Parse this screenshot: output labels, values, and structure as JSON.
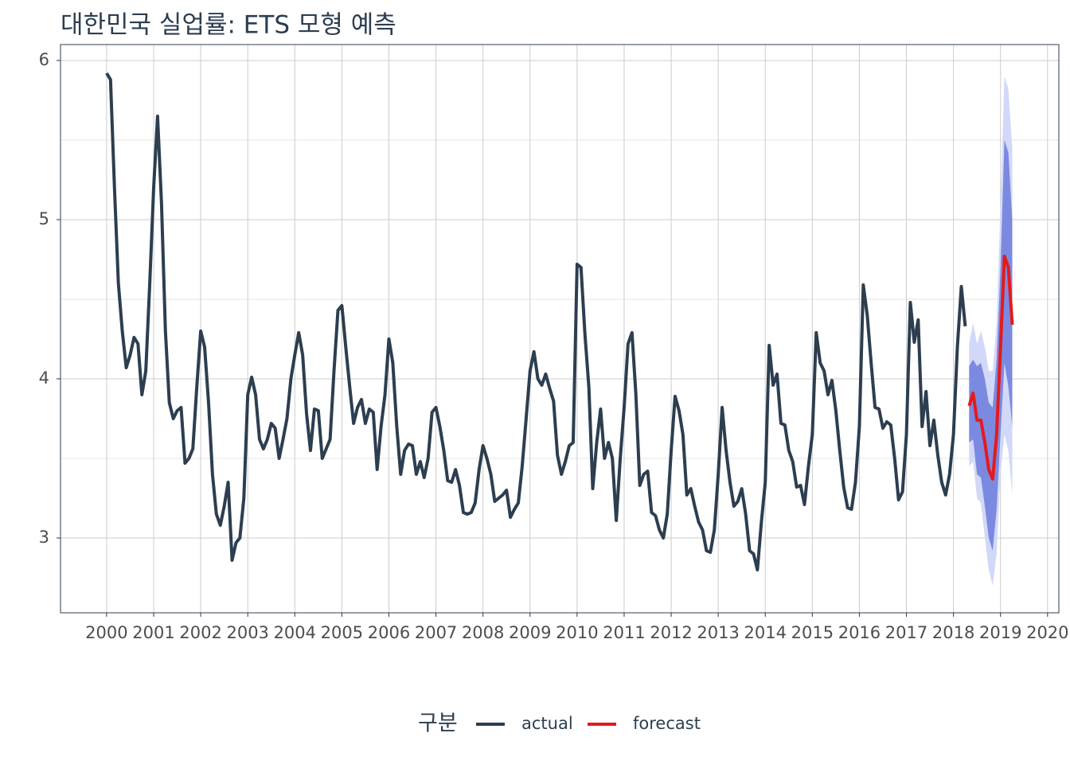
{
  "chart_data": {
    "type": "line",
    "title": "대한민국 실업률: ETS 모형 예측",
    "legend_title": "구분",
    "legend": "bottom",
    "grid": true,
    "xlim": [
      1999.02,
      2020.24
    ],
    "xticks": [
      2000,
      2001,
      2002,
      2003,
      2004,
      2005,
      2006,
      2007,
      2008,
      2009,
      2010,
      2011,
      2012,
      2013,
      2014,
      2015,
      2016,
      2017,
      2018,
      2019,
      2020
    ],
    "ylim": [
      2.53,
      6.1
    ],
    "yticks": [
      3,
      4,
      5,
      6
    ],
    "y_minor_ticks": [
      3.5,
      4.5,
      5.5
    ],
    "series": [
      {
        "name": "actual",
        "color": "#2c3e50",
        "x": [
          2000,
          2000.083,
          2000.167,
          2000.25,
          2000.333,
          2000.417,
          2000.5,
          2000.583,
          2000.667,
          2000.75,
          2000.833,
          2000.917,
          2001,
          2001.083,
          2001.167,
          2001.25,
          2001.333,
          2001.417,
          2001.5,
          2001.583,
          2001.667,
          2001.75,
          2001.833,
          2001.917,
          2002,
          2002.083,
          2002.167,
          2002.25,
          2002.333,
          2002.417,
          2002.5,
          2002.583,
          2002.667,
          2002.75,
          2002.833,
          2002.917,
          2003,
          2003.083,
          2003.167,
          2003.25,
          2003.333,
          2003.417,
          2003.5,
          2003.583,
          2003.667,
          2003.75,
          2003.833,
          2003.917,
          2004,
          2004.083,
          2004.167,
          2004.25,
          2004.333,
          2004.417,
          2004.5,
          2004.583,
          2004.667,
          2004.75,
          2004.833,
          2004.917,
          2005,
          2005.083,
          2005.167,
          2005.25,
          2005.333,
          2005.417,
          2005.5,
          2005.583,
          2005.667,
          2005.75,
          2005.833,
          2005.917,
          2006,
          2006.083,
          2006.167,
          2006.25,
          2006.333,
          2006.417,
          2006.5,
          2006.583,
          2006.667,
          2006.75,
          2006.833,
          2006.917,
          2007,
          2007.083,
          2007.167,
          2007.25,
          2007.333,
          2007.417,
          2007.5,
          2007.583,
          2007.667,
          2007.75,
          2007.833,
          2007.917,
          2008,
          2008.083,
          2008.167,
          2008.25,
          2008.333,
          2008.417,
          2008.5,
          2008.583,
          2008.667,
          2008.75,
          2008.833,
          2008.917,
          2009,
          2009.083,
          2009.167,
          2009.25,
          2009.333,
          2009.417,
          2009.5,
          2009.583,
          2009.667,
          2009.75,
          2009.833,
          2009.917,
          2010,
          2010.083,
          2010.167,
          2010.25,
          2010.333,
          2010.417,
          2010.5,
          2010.583,
          2010.667,
          2010.75,
          2010.833,
          2010.917,
          2011,
          2011.083,
          2011.167,
          2011.25,
          2011.333,
          2011.417,
          2011.5,
          2011.583,
          2011.667,
          2011.75,
          2011.833,
          2011.917,
          2012,
          2012.083,
          2012.167,
          2012.25,
          2012.333,
          2012.417,
          2012.5,
          2012.583,
          2012.667,
          2012.75,
          2012.833,
          2012.917,
          2013,
          2013.083,
          2013.167,
          2013.25,
          2013.333,
          2013.417,
          2013.5,
          2013.583,
          2013.667,
          2013.75,
          2013.833,
          2013.917,
          2014,
          2014.083,
          2014.167,
          2014.25,
          2014.333,
          2014.417,
          2014.5,
          2014.583,
          2014.667,
          2014.75,
          2014.833,
          2014.917,
          2015,
          2015.083,
          2015.167,
          2015.25,
          2015.333,
          2015.417,
          2015.5,
          2015.583,
          2015.667,
          2015.75,
          2015.833,
          2015.917,
          2016,
          2016.083,
          2016.167,
          2016.25,
          2016.333,
          2016.417,
          2016.5,
          2016.583,
          2016.667,
          2016.75,
          2016.833,
          2016.917,
          2017,
          2017.083,
          2017.167,
          2017.25,
          2017.333,
          2017.417,
          2017.5,
          2017.583,
          2017.667,
          2017.75,
          2017.833,
          2017.917,
          2018,
          2018.083,
          2018.167,
          2018.25
        ],
        "values": [
          5.92,
          5.88,
          5.2,
          4.6,
          4.3,
          4.07,
          4.15,
          4.26,
          4.22,
          3.9,
          4.05,
          4.6,
          5.2,
          5.65,
          5.1,
          4.3,
          3.85,
          3.75,
          3.8,
          3.82,
          3.47,
          3.5,
          3.56,
          3.95,
          4.3,
          4.2,
          3.85,
          3.4,
          3.15,
          3.08,
          3.2,
          3.35,
          2.86,
          2.97,
          3.0,
          3.25,
          3.9,
          4.01,
          3.9,
          3.62,
          3.56,
          3.62,
          3.72,
          3.69,
          3.5,
          3.62,
          3.75,
          4.0,
          4.15,
          4.29,
          4.15,
          3.78,
          3.55,
          3.81,
          3.8,
          3.5,
          3.56,
          3.62,
          4.05,
          4.43,
          4.46,
          4.2,
          3.95,
          3.72,
          3.82,
          3.87,
          3.72,
          3.81,
          3.79,
          3.43,
          3.7,
          3.9,
          4.25,
          4.1,
          3.7,
          3.4,
          3.55,
          3.59,
          3.58,
          3.4,
          3.48,
          3.38,
          3.5,
          3.79,
          3.82,
          3.7,
          3.55,
          3.36,
          3.35,
          3.43,
          3.33,
          3.16,
          3.15,
          3.16,
          3.22,
          3.43,
          3.58,
          3.5,
          3.4,
          3.23,
          3.25,
          3.27,
          3.3,
          3.13,
          3.18,
          3.22,
          3.45,
          3.75,
          4.05,
          4.17,
          4.0,
          3.96,
          4.03,
          3.94,
          3.86,
          3.52,
          3.4,
          3.48,
          3.58,
          3.6,
          4.72,
          4.7,
          4.28,
          3.95,
          3.31,
          3.6,
          3.81,
          3.5,
          3.6,
          3.5,
          3.11,
          3.5,
          3.82,
          4.22,
          4.29,
          3.9,
          3.33,
          3.4,
          3.42,
          3.16,
          3.14,
          3.05,
          3.0,
          3.15,
          3.55,
          3.89,
          3.8,
          3.65,
          3.27,
          3.31,
          3.2,
          3.1,
          3.05,
          2.92,
          2.91,
          3.05,
          3.4,
          3.82,
          3.55,
          3.35,
          3.2,
          3.23,
          3.31,
          3.15,
          2.92,
          2.9,
          2.8,
          3.1,
          3.35,
          4.21,
          3.96,
          4.03,
          3.72,
          3.71,
          3.55,
          3.48,
          3.32,
          3.33,
          3.21,
          3.45,
          3.65,
          4.29,
          4.1,
          4.05,
          3.9,
          3.99,
          3.8,
          3.55,
          3.32,
          3.19,
          3.18,
          3.35,
          3.7,
          4.59,
          4.4,
          4.1,
          3.82,
          3.81,
          3.69,
          3.73,
          3.71,
          3.5,
          3.24,
          3.29,
          3.65,
          4.48,
          4.23,
          4.37,
          3.7,
          3.92,
          3.58,
          3.74,
          3.52,
          3.35,
          3.27,
          3.4,
          3.65,
          4.2,
          4.58,
          4.33
        ]
      },
      {
        "name": "forecast",
        "color": "#e41a1c",
        "x": [
          2018.333,
          2018.417,
          2018.5,
          2018.583,
          2018.667,
          2018.75,
          2018.833,
          2018.917,
          2019,
          2019.083,
          2019.167,
          2019.25
        ],
        "values": [
          3.83,
          3.91,
          3.74,
          3.74,
          3.6,
          3.43,
          3.37,
          3.65,
          4.2,
          4.77,
          4.7,
          4.34
        ]
      }
    ],
    "bands": [
      {
        "color": "#d2d8f7",
        "lower": [
          3.45,
          3.48,
          3.25,
          3.22,
          3.0,
          2.8,
          2.7,
          2.9,
          3.4,
          3.65,
          3.55,
          3.27
        ],
        "upper": [
          4.22,
          4.35,
          4.22,
          4.3,
          4.2,
          4.05,
          4.05,
          4.35,
          5.1,
          5.9,
          5.82,
          5.45
        ]
      },
      {
        "color": "#7b8ae0",
        "lower": [
          3.6,
          3.62,
          3.4,
          3.38,
          3.2,
          3.0,
          2.92,
          3.18,
          3.65,
          4.1,
          3.95,
          3.7
        ],
        "upper": [
          4.08,
          4.12,
          4.08,
          4.1,
          4.0,
          3.85,
          3.82,
          4.12,
          4.7,
          5.5,
          5.42,
          5.0
        ]
      }
    ]
  }
}
